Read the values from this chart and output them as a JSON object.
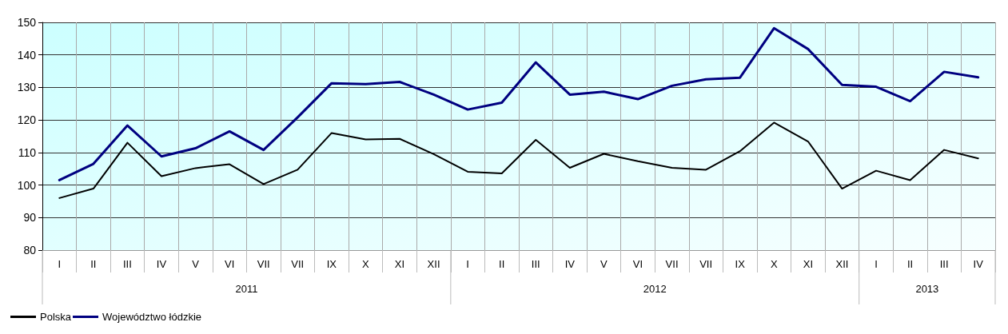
{
  "chart_data": {
    "type": "line",
    "categories": [
      "I",
      "II",
      "III",
      "IV",
      "V",
      "VI",
      "VII",
      "VII",
      "IX",
      "X",
      "XI",
      "XII",
      "I",
      "II",
      "III",
      "IV",
      "V",
      "VI",
      "VII",
      "VII",
      "IX",
      "X",
      "XI",
      "XII",
      "I",
      "II",
      "III",
      "IV"
    ],
    "series": [
      {
        "name": "Polska",
        "color": "#000000",
        "values": [
          96,
          98.9,
          113,
          102.7,
          105.2,
          106.4,
          100.3,
          104.7,
          116,
          114,
          114.2,
          109.5,
          104.1,
          103.6,
          113.9,
          105.3,
          109.6,
          107.3,
          105.3,
          104.7,
          110.4,
          119.2,
          113.4,
          98.9,
          104.4,
          101.5,
          110.8,
          108.2
        ]
      },
      {
        "name": "Województwo łódzkie",
        "color": "#000080",
        "values": [
          101.5,
          106.5,
          118.3,
          108.8,
          111.3,
          116.5,
          110.8,
          120.8,
          131.3,
          131,
          131.7,
          127.8,
          123.2,
          125.3,
          137.7,
          127.8,
          128.7,
          126.4,
          130.5,
          132.5,
          133,
          148.2,
          141.8,
          130.8,
          130.2,
          125.8,
          134.8,
          133.1
        ]
      }
    ],
    "annotations": [
      "2011",
      "2012",
      "2013"
    ],
    "ylim": [
      80,
      150
    ],
    "yticks": [
      80,
      90,
      100,
      110,
      120,
      130,
      140,
      150
    ],
    "grid": true,
    "legend": "bottom left",
    "marker": "none",
    "line_style": "solid"
  }
}
